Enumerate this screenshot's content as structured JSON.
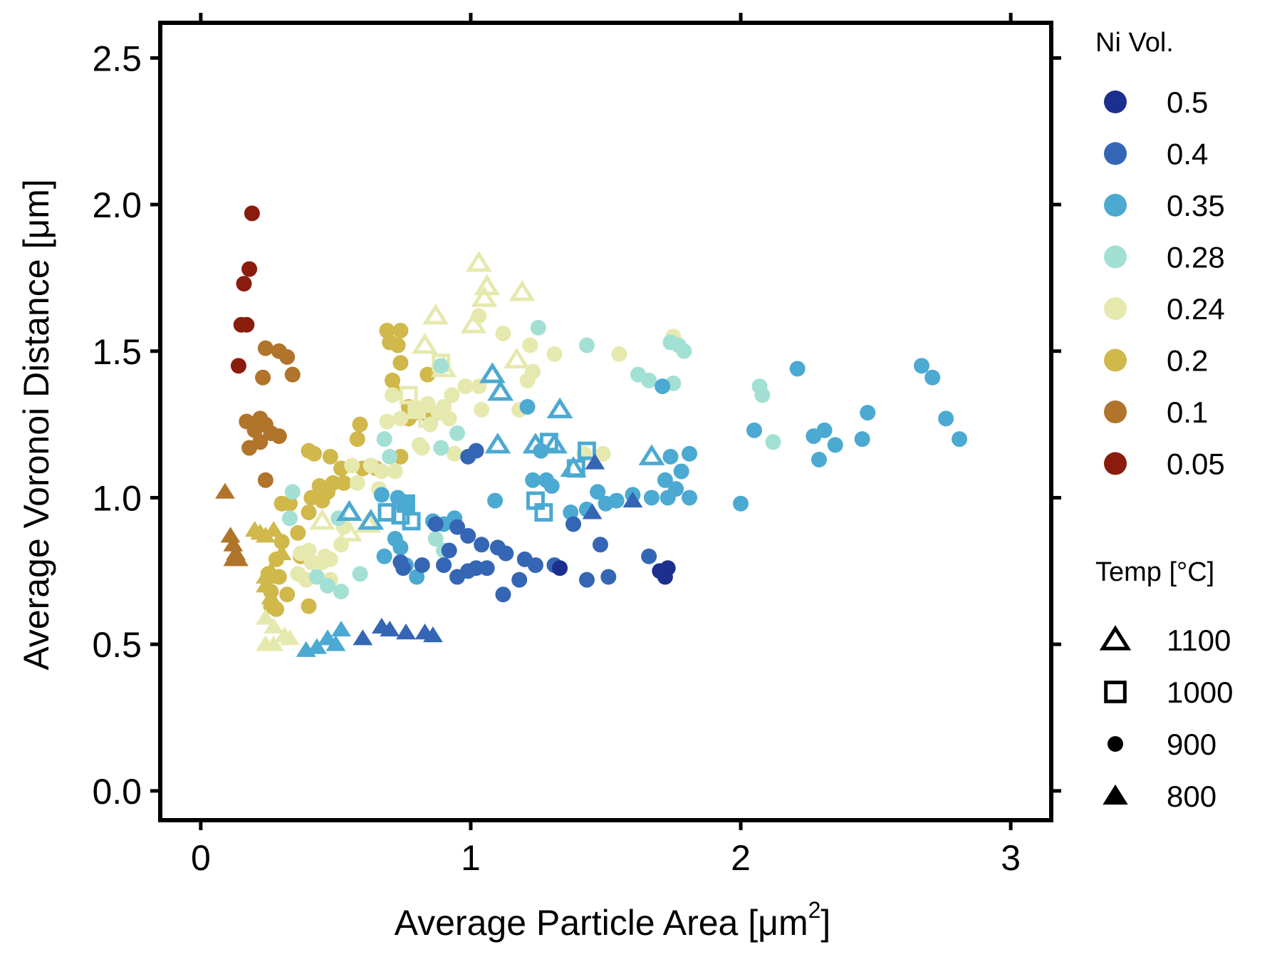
{
  "chart_data": {
    "type": "scatter",
    "xlabel_main": "Average Particle Area [μm",
    "xlabel_sup": "2",
    "xlabel_end": "]",
    "ylabel": "Average Voronoi Distance [μm]",
    "xlim": [
      -0.15,
      3.15
    ],
    "ylim": [
      -0.1,
      2.62
    ],
    "x_ticks": [
      0,
      1,
      2,
      3
    ],
    "y_ticks": [
      0.0,
      0.5,
      1.0,
      1.5,
      2.0,
      2.5
    ],
    "x_tick_labels": [
      "0",
      "1",
      "2",
      "3"
    ],
    "y_tick_labels": [
      "0.0",
      "0.5",
      "1.0",
      "1.5",
      "2.0",
      "2.5"
    ],
    "grid": false,
    "legend_placement": "right",
    "color_legend": {
      "title": "Ni Vol.",
      "entries": [
        {
          "label": "0.5",
          "color": "#1c2f8f"
        },
        {
          "label": "0.4",
          "color": "#3466b5"
        },
        {
          "label": "0.35",
          "color": "#4ca9d1"
        },
        {
          "label": "0.28",
          "color": "#a3e0d4"
        },
        {
          "label": "0.24",
          "color": "#e6e9ae"
        },
        {
          "label": "0.2",
          "color": "#d0b84a"
        },
        {
          "label": "0.1",
          "color": "#b0742a"
        },
        {
          "label": "0.05",
          "color": "#8a1c0e"
        }
      ]
    },
    "shape_legend": {
      "title": "Temp [°C]",
      "entries": [
        {
          "label": "1100",
          "shape": "triangle-open"
        },
        {
          "label": "1000",
          "shape": "square-open"
        },
        {
          "label": "900",
          "shape": "circle"
        },
        {
          "label": "800",
          "shape": "triangle-filled"
        }
      ]
    },
    "series": [
      {
        "ni": "0.05",
        "temp": "900",
        "points": [
          [
            0.19,
            1.97
          ],
          [
            0.18,
            1.78
          ],
          [
            0.16,
            1.73
          ],
          [
            0.15,
            1.59
          ],
          [
            0.17,
            1.59
          ],
          [
            0.14,
            1.45
          ]
        ]
      },
      {
        "ni": "0.1",
        "temp": "900",
        "points": [
          [
            0.24,
            1.51
          ],
          [
            0.29,
            1.5
          ],
          [
            0.32,
            1.48
          ],
          [
            0.34,
            1.42
          ],
          [
            0.23,
            1.41
          ],
          [
            0.17,
            1.26
          ],
          [
            0.22,
            1.27
          ],
          [
            0.24,
            1.25
          ],
          [
            0.2,
            1.23
          ],
          [
            0.26,
            1.22
          ],
          [
            0.29,
            1.21
          ],
          [
            0.22,
            1.19
          ],
          [
            0.18,
            1.17
          ],
          [
            0.24,
            1.06
          ]
        ]
      },
      {
        "ni": "0.1",
        "temp": "800",
        "points": [
          [
            0.09,
            1.02
          ],
          [
            0.11,
            0.87
          ],
          [
            0.12,
            0.84
          ],
          [
            0.13,
            0.81
          ],
          [
            0.12,
            0.79
          ],
          [
            0.14,
            0.79
          ]
        ]
      },
      {
        "ni": "0.2",
        "temp": "900",
        "points": [
          [
            0.69,
            1.57
          ],
          [
            0.74,
            1.57
          ],
          [
            0.7,
            1.53
          ],
          [
            0.73,
            1.52
          ],
          [
            0.74,
            1.46
          ],
          [
            0.71,
            1.4
          ],
          [
            0.72,
            1.36
          ],
          [
            0.84,
            1.42
          ],
          [
            0.77,
            1.31
          ],
          [
            0.77,
            1.27
          ],
          [
            0.81,
            1.29
          ],
          [
            0.85,
            1.27
          ],
          [
            0.59,
            1.25
          ],
          [
            0.58,
            1.2
          ],
          [
            0.74,
            1.14
          ],
          [
            0.65,
            1.1
          ],
          [
            0.6,
            1.1
          ],
          [
            0.52,
            1.1
          ],
          [
            0.48,
            1.14
          ],
          [
            0.4,
            1.16
          ],
          [
            0.42,
            1.15
          ],
          [
            0.49,
            1.05
          ],
          [
            0.44,
            1.04
          ],
          [
            0.47,
            1.02
          ],
          [
            0.53,
            1.05
          ],
          [
            0.41,
            1.0
          ],
          [
            0.45,
            0.99
          ],
          [
            0.3,
            0.98
          ],
          [
            0.33,
            0.98
          ],
          [
            0.4,
            0.95
          ],
          [
            0.36,
            0.88
          ],
          [
            0.3,
            0.85
          ],
          [
            0.37,
            0.8
          ],
          [
            0.28,
            0.79
          ],
          [
            0.25,
            0.74
          ],
          [
            0.29,
            0.73
          ],
          [
            0.26,
            0.68
          ],
          [
            0.32,
            0.67
          ],
          [
            0.26,
            0.63
          ],
          [
            0.4,
            0.63
          ],
          [
            0.28,
            0.62
          ]
        ]
      },
      {
        "ni": "0.2",
        "temp": "800",
        "points": [
          [
            0.2,
            0.89
          ],
          [
            0.22,
            0.88
          ],
          [
            0.24,
            0.87
          ],
          [
            0.27,
            0.89
          ],
          [
            0.3,
            0.81
          ],
          [
            0.26,
            0.75
          ],
          [
            0.24,
            0.73
          ],
          [
            0.24,
            0.7
          ],
          [
            0.26,
            0.66
          ]
        ]
      },
      {
        "ni": "0.24",
        "temp": "1100",
        "points": [
          [
            1.03,
            1.8
          ],
          [
            1.06,
            1.72
          ],
          [
            1.05,
            1.68
          ],
          [
            1.19,
            1.7
          ],
          [
            0.87,
            1.62
          ],
          [
            1.01,
            1.59
          ],
          [
            0.83,
            1.52
          ],
          [
            1.17,
            1.47
          ],
          [
            0.9,
            1.44
          ],
          [
            0.45,
            0.92
          ],
          [
            0.55,
            0.88
          ],
          [
            0.62,
            0.91
          ]
        ]
      },
      {
        "ni": "0.24",
        "temp": "1000",
        "points": [
          [
            0.89,
            1.46
          ],
          [
            0.77,
            1.35
          ],
          [
            0.8,
            1.3
          ],
          [
            0.84,
            1.27
          ]
        ]
      },
      {
        "ni": "0.24",
        "temp": "900",
        "points": [
          [
            1.03,
            1.62
          ],
          [
            1.12,
            1.56
          ],
          [
            1.22,
            1.52
          ],
          [
            1.31,
            1.49
          ],
          [
            1.55,
            1.49
          ],
          [
            1.75,
            1.55
          ],
          [
            1.23,
            1.43
          ],
          [
            1.21,
            1.4
          ],
          [
            0.98,
            1.38
          ],
          [
            1.03,
            1.38
          ],
          [
            0.93,
            1.35
          ],
          [
            0.71,
            1.35
          ],
          [
            0.9,
            1.31
          ],
          [
            1.04,
            1.3
          ],
          [
            1.18,
            1.3
          ],
          [
            0.8,
            1.3
          ],
          [
            0.84,
            1.32
          ],
          [
            0.88,
            1.29
          ],
          [
            0.92,
            1.27
          ],
          [
            0.85,
            1.25
          ],
          [
            0.74,
            1.27
          ],
          [
            0.69,
            1.26
          ],
          [
            0.81,
            1.18
          ],
          [
            0.94,
            1.15
          ],
          [
            0.82,
            1.17
          ],
          [
            1.42,
            1.15
          ],
          [
            1.49,
            1.15
          ],
          [
            0.56,
            1.11
          ],
          [
            0.63,
            1.11
          ],
          [
            0.67,
            1.09
          ],
          [
            0.72,
            1.09
          ],
          [
            0.58,
            1.05
          ],
          [
            0.66,
            1.03
          ],
          [
            0.53,
            0.9
          ],
          [
            0.46,
            0.8
          ],
          [
            0.4,
            0.82
          ],
          [
            0.37,
            0.81
          ],
          [
            0.45,
            0.78
          ],
          [
            0.48,
            0.79
          ],
          [
            0.52,
            0.84
          ],
          [
            0.36,
            0.74
          ],
          [
            0.41,
            0.78
          ],
          [
            0.39,
            0.72
          ],
          [
            0.43,
            0.73
          ],
          [
            0.48,
            0.72
          ]
        ]
      },
      {
        "ni": "0.24",
        "temp": "800",
        "points": [
          [
            0.24,
            0.59
          ],
          [
            0.27,
            0.56
          ],
          [
            0.31,
            0.53
          ],
          [
            0.33,
            0.52
          ],
          [
            0.24,
            0.5
          ],
          [
            0.27,
            0.5
          ]
        ]
      },
      {
        "ni": "0.28",
        "temp": "900",
        "points": [
          [
            1.25,
            1.58
          ],
          [
            1.43,
            1.52
          ],
          [
            1.62,
            1.42
          ],
          [
            1.66,
            1.4
          ],
          [
            1.74,
            1.53
          ],
          [
            1.77,
            1.52
          ],
          [
            1.79,
            1.5
          ],
          [
            1.75,
            1.39
          ],
          [
            2.07,
            1.38
          ],
          [
            2.08,
            1.35
          ],
          [
            2.12,
            1.19
          ],
          [
            0.89,
            1.45
          ],
          [
            0.95,
            1.22
          ],
          [
            0.68,
            1.2
          ],
          [
            0.7,
            1.14
          ],
          [
            0.89,
            1.17
          ],
          [
            0.34,
            1.02
          ],
          [
            0.33,
            0.93
          ],
          [
            0.51,
            0.93
          ],
          [
            0.59,
            0.74
          ],
          [
            0.43,
            0.73
          ],
          [
            0.47,
            0.7
          ],
          [
            0.52,
            0.68
          ],
          [
            0.9,
            0.82
          ],
          [
            0.87,
            0.86
          ],
          [
            0.68,
            0.8
          ]
        ]
      },
      {
        "ni": "0.35",
        "temp": "1100",
        "points": [
          [
            1.08,
            1.42
          ],
          [
            1.11,
            1.36
          ],
          [
            1.33,
            1.3
          ],
          [
            1.1,
            1.18
          ],
          [
            1.24,
            1.18
          ],
          [
            1.31,
            1.18
          ],
          [
            1.67,
            1.14
          ],
          [
            1.38,
            1.1
          ],
          [
            0.55,
            0.95
          ],
          [
            0.63,
            0.92
          ]
        ]
      },
      {
        "ni": "0.35",
        "temp": "1000",
        "points": [
          [
            1.29,
            1.19
          ],
          [
            1.43,
            1.16
          ],
          [
            1.39,
            1.1
          ],
          [
            1.24,
            0.99
          ],
          [
            1.27,
            0.95
          ],
          [
            0.69,
            0.95
          ],
          [
            0.76,
            0.98
          ],
          [
            0.74,
            0.94
          ],
          [
            0.78,
            0.92
          ]
        ]
      },
      {
        "ni": "0.35",
        "temp": "900",
        "points": [
          [
            2.21,
            1.44
          ],
          [
            2.27,
            1.21
          ],
          [
            2.31,
            1.23
          ],
          [
            2.35,
            1.18
          ],
          [
            2.29,
            1.13
          ],
          [
            2.45,
            1.2
          ],
          [
            2.47,
            1.29
          ],
          [
            2.05,
            1.23
          ],
          [
            2.67,
            1.45
          ],
          [
            2.71,
            1.41
          ],
          [
            2.76,
            1.27
          ],
          [
            2.81,
            1.2
          ],
          [
            2.0,
            0.98
          ],
          [
            1.71,
            1.38
          ],
          [
            1.81,
            1.15
          ],
          [
            1.74,
            1.14
          ],
          [
            1.78,
            1.09
          ],
          [
            1.72,
            1.06
          ],
          [
            1.76,
            1.03
          ],
          [
            1.67,
            1.0
          ],
          [
            1.73,
            1.0
          ],
          [
            1.81,
            1.0
          ],
          [
            1.6,
            1.01
          ],
          [
            1.54,
            0.99
          ],
          [
            1.47,
            1.02
          ],
          [
            1.5,
            0.98
          ],
          [
            1.43,
            0.96
          ],
          [
            1.37,
            0.95
          ],
          [
            1.26,
            1.16
          ],
          [
            1.28,
            1.06
          ],
          [
            1.23,
            1.06
          ],
          [
            1.3,
            1.04
          ],
          [
            1.09,
            0.99
          ],
          [
            1.21,
            1.31
          ],
          [
            0.67,
            1.01
          ],
          [
            0.73,
            1.0
          ],
          [
            0.76,
            0.98
          ],
          [
            0.94,
            0.93
          ],
          [
            0.86,
            0.92
          ],
          [
            0.9,
            0.91
          ],
          [
            0.72,
            0.86
          ],
          [
            0.74,
            0.83
          ],
          [
            0.68,
            0.8
          ],
          [
            0.76,
            0.77
          ],
          [
            0.8,
            0.73
          ]
        ]
      },
      {
        "ni": "0.35",
        "temp": "800",
        "points": [
          [
            0.39,
            0.48
          ],
          [
            0.43,
            0.49
          ],
          [
            0.47,
            0.52
          ],
          [
            0.5,
            0.5
          ],
          [
            0.52,
            0.55
          ]
        ]
      },
      {
        "ni": "0.4",
        "temp": "900",
        "points": [
          [
            0.99,
            1.14
          ],
          [
            1.02,
            1.16
          ],
          [
            0.99,
            0.87
          ],
          [
            1.04,
            0.84
          ],
          [
            1.13,
            0.81
          ],
          [
            1.1,
            0.83
          ],
          [
            1.24,
            0.77
          ],
          [
            1.2,
            0.79
          ],
          [
            0.87,
            0.91
          ],
          [
            0.95,
            0.9
          ],
          [
            0.92,
            0.82
          ],
          [
            0.74,
            0.78
          ],
          [
            0.75,
            0.76
          ],
          [
            0.82,
            0.77
          ],
          [
            0.9,
            0.77
          ],
          [
            0.95,
            0.73
          ],
          [
            0.99,
            0.75
          ],
          [
            1.02,
            0.76
          ],
          [
            1.06,
            0.76
          ],
          [
            1.12,
            0.67
          ],
          [
            1.18,
            0.72
          ],
          [
            1.31,
            0.77
          ],
          [
            1.38,
            0.91
          ],
          [
            1.43,
            0.72
          ],
          [
            1.48,
            0.84
          ],
          [
            1.51,
            0.73
          ],
          [
            1.66,
            0.8
          ]
        ]
      },
      {
        "ni": "0.4",
        "temp": "800",
        "points": [
          [
            0.6,
            0.52
          ],
          [
            0.67,
            0.56
          ],
          [
            0.7,
            0.55
          ],
          [
            0.76,
            0.54
          ],
          [
            0.83,
            0.54
          ],
          [
            0.86,
            0.53
          ],
          [
            1.45,
            0.95
          ],
          [
            1.6,
            0.99
          ],
          [
            1.46,
            1.12
          ]
        ]
      },
      {
        "ni": "0.5",
        "temp": "900",
        "points": [
          [
            1.7,
            0.75
          ],
          [
            1.73,
            0.76
          ],
          [
            1.72,
            0.73
          ],
          [
            1.33,
            0.76
          ]
        ]
      }
    ]
  }
}
